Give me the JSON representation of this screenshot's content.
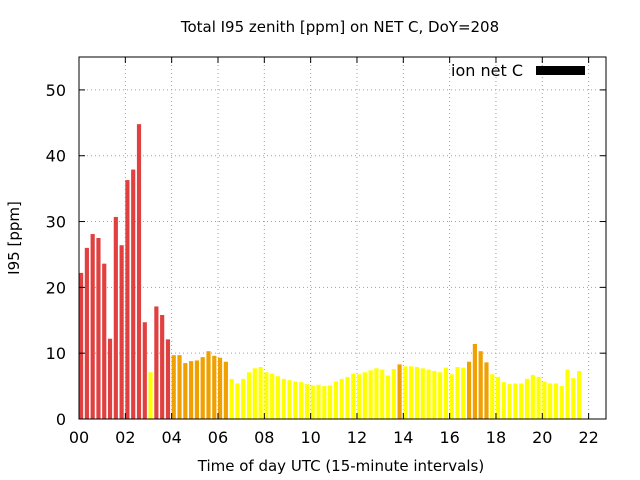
{
  "chart_data": {
    "type": "bar",
    "title": "Total I95 zenith [ppm] on NET C, DoY=208",
    "xlabel": "Time of day UTC (15-minute intervals)",
    "ylabel": "I95 [ppm]",
    "xlim": [
      0,
      22.75
    ],
    "ylim": [
      0,
      55
    ],
    "x_ticks": [
      "00",
      "02",
      "04",
      "06",
      "08",
      "10",
      "12",
      "14",
      "16",
      "18",
      "20",
      "22"
    ],
    "y_ticks": [
      "0",
      "10",
      "20",
      "30",
      "40",
      "50"
    ],
    "grid": true,
    "legend": {
      "position": "top-right",
      "label": "ion net C",
      "color": "#000000"
    },
    "interval_hours": 0.25,
    "level_colors": {
      "red": "#e04040",
      "orange": "#f0a000",
      "yellow": "#ffff00"
    },
    "values": [
      22.2,
      26.0,
      28.1,
      27.5,
      23.6,
      12.2,
      30.7,
      26.4,
      36.3,
      37.9,
      44.8,
      14.7,
      7.1,
      17.1,
      15.8,
      12.1,
      9.7,
      9.7,
      8.5,
      8.8,
      8.9,
      9.4,
      10.3,
      9.6,
      9.3,
      8.7,
      6.1,
      5.4,
      6.1,
      7.1,
      7.7,
      7.9,
      7.1,
      6.9,
      6.5,
      6.1,
      5.9,
      5.7,
      5.6,
      5.3,
      5.1,
      5.2,
      5.0,
      5.1,
      5.7,
      6.1,
      6.4,
      6.9,
      6.8,
      7.1,
      7.4,
      7.7,
      7.5,
      6.6,
      7.6,
      8.3,
      8.0,
      8.0,
      7.9,
      7.7,
      7.5,
      7.3,
      7.1,
      7.8,
      6.8,
      7.9,
      7.8,
      8.7,
      11.4,
      10.3,
      8.6,
      6.8,
      6.4,
      5.6,
      5.3,
      5.4,
      5.4,
      6.1,
      6.7,
      6.4,
      5.7,
      5.4,
      5.4,
      5.0,
      7.5,
      6.2,
      7.3
    ],
    "colors": [
      "red",
      "red",
      "red",
      "red",
      "red",
      "red",
      "red",
      "red",
      "red",
      "red",
      "red",
      "red",
      "yellow",
      "red",
      "red",
      "red",
      "orange",
      "orange",
      "orange",
      "orange",
      "orange",
      "orange",
      "orange",
      "orange",
      "orange",
      "orange",
      "yellow",
      "yellow",
      "yellow",
      "yellow",
      "yellow",
      "yellow",
      "yellow",
      "yellow",
      "yellow",
      "yellow",
      "yellow",
      "yellow",
      "yellow",
      "yellow",
      "yellow",
      "yellow",
      "yellow",
      "yellow",
      "yellow",
      "yellow",
      "yellow",
      "yellow",
      "yellow",
      "yellow",
      "yellow",
      "yellow",
      "yellow",
      "yellow",
      "yellow",
      "orange",
      "yellow",
      "yellow",
      "yellow",
      "yellow",
      "yellow",
      "yellow",
      "yellow",
      "yellow",
      "yellow",
      "yellow",
      "yellow",
      "orange",
      "orange",
      "orange",
      "orange",
      "yellow",
      "yellow",
      "yellow",
      "yellow",
      "yellow",
      "yellow",
      "yellow",
      "yellow",
      "yellow",
      "yellow",
      "yellow",
      "yellow",
      "yellow",
      "yellow",
      "yellow",
      "yellow"
    ]
  }
}
